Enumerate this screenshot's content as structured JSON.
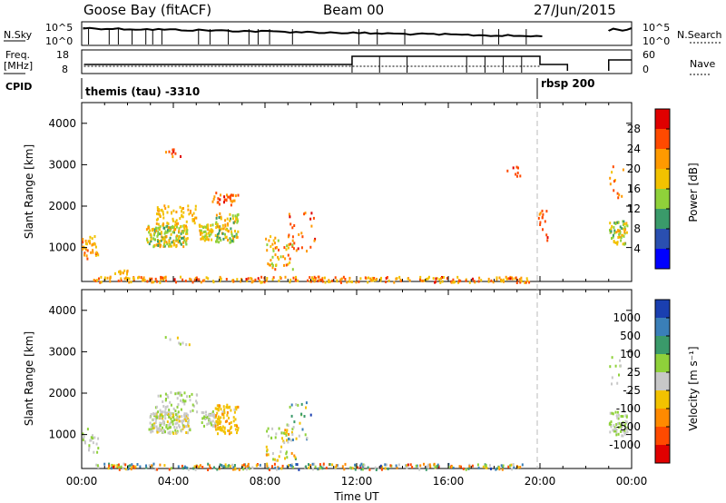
{
  "header": {
    "station": "Goose Bay (fitACF)",
    "beam": "Beam 00",
    "date": "27/Jun/2015"
  },
  "top_panels": {
    "nsky": {
      "label": "N.Sky",
      "ticks": [
        "10^5",
        "10^0"
      ]
    },
    "nsearch": {
      "label": "N.Search",
      "ticks": [
        "10^5",
        "10^0"
      ]
    },
    "freq": {
      "label": "Freq.",
      "unit": "[MHz]",
      "ticks": [
        "18",
        "8"
      ]
    },
    "nave": {
      "label": "Nave",
      "ticks": [
        "60",
        "0"
      ]
    },
    "cpid": {
      "label": "CPID",
      "programs": [
        "themis (tau) -3310",
        "rbsp 200"
      ]
    }
  },
  "colors": {
    "axis": "#000000",
    "gridline": "#bbbbbb"
  },
  "chart_data": [
    {
      "type": "heatmap",
      "panel": "power",
      "ylabel": "Slant Range [km]",
      "ylim": [
        180,
        4500
      ],
      "yticks": [
        1000,
        2000,
        3000,
        4000
      ],
      "xlim": [
        0,
        24
      ],
      "cbar": {
        "label": "Power [dB]",
        "ticks": [
          "28",
          "24",
          "20",
          "16",
          "12",
          "8",
          "4"
        ],
        "colors": [
          "#e00000",
          "#ff4a00",
          "#ff9a00",
          "#f2c200",
          "#8fd13a",
          "#3a9a6a",
          "#2a4fb0",
          "#0000ff"
        ]
      },
      "clusters": [
        {
          "t": 0.3,
          "r": 1000,
          "dt": 0.4,
          "dr": 300,
          "n": 40,
          "c": [
            0.2,
            0.5
          ]
        },
        {
          "t": 1.7,
          "r": 410,
          "dt": 0.3,
          "dr": 60,
          "n": 12,
          "c": [
            0.3,
            0.5
          ]
        },
        {
          "t": 3.7,
          "r": 1300,
          "dt": 0.9,
          "dr": 250,
          "n": 170,
          "c": [
            0.3,
            0.7
          ]
        },
        {
          "t": 4.1,
          "r": 1800,
          "dt": 0.9,
          "dr": 250,
          "n": 70,
          "c": [
            0.3,
            0.5
          ]
        },
        {
          "t": 5.4,
          "r": 1400,
          "dt": 0.3,
          "dr": 200,
          "n": 50,
          "c": [
            0.3,
            0.6
          ]
        },
        {
          "t": 6.3,
          "r": 1500,
          "dt": 0.5,
          "dr": 350,
          "n": 90,
          "c": [
            0.3,
            0.7
          ]
        },
        {
          "t": 6.2,
          "r": 2200,
          "dt": 0.6,
          "dr": 150,
          "n": 30,
          "c": [
            0.1,
            0.3
          ]
        },
        {
          "t": 8.6,
          "r": 900,
          "dt": 0.6,
          "dr": 400,
          "n": 50,
          "c": [
            0.2,
            0.6
          ]
        },
        {
          "t": 9.6,
          "r": 1400,
          "dt": 0.6,
          "dr": 500,
          "n": 25,
          "c": [
            0.1,
            0.3
          ]
        },
        {
          "t": 4.2,
          "r": 3300,
          "dt": 0.6,
          "dr": 100,
          "n": 10,
          "c": [
            0.1,
            0.3
          ]
        },
        {
          "t": 23.4,
          "r": 1400,
          "dt": 0.4,
          "dr": 300,
          "n": 60,
          "c": [
            0.3,
            0.7
          ]
        },
        {
          "t": 23.3,
          "r": 2600,
          "dt": 0.3,
          "dr": 400,
          "n": 12,
          "c": [
            0.1,
            0.4
          ]
        },
        {
          "t": 20.1,
          "r": 1600,
          "dt": 0.2,
          "dr": 400,
          "n": 15,
          "c": [
            0.1,
            0.3
          ]
        },
        {
          "t": 10,
          "r": 250,
          "dt": 9.5,
          "dr": 70,
          "n": 260,
          "c": [
            0.1,
            0.5
          ]
        },
        {
          "t": 18.8,
          "r": 2900,
          "dt": 0.3,
          "dr": 200,
          "n": 8,
          "c": [
            0.1,
            0.2
          ]
        }
      ]
    },
    {
      "type": "heatmap",
      "panel": "velocity",
      "ylabel": "Slant Range [km]",
      "ylim": [
        180,
        4500
      ],
      "yticks": [
        1000,
        2000,
        3000,
        4000
      ],
      "xlim": [
        0,
        24
      ],
      "xlabel": "Time UT",
      "xticks": [
        "00:00",
        "04:00",
        "08:00",
        "12:00",
        "16:00",
        "20:00",
        "00:00"
      ],
      "cbar": {
        "label": "Velocity [m s⁻¹]",
        "ticks": [
          "1000",
          "500",
          "100",
          "25",
          "-25",
          "-100",
          "-500",
          "-1000"
        ],
        "colors": [
          "#1a3fb0",
          "#3a7fb8",
          "#3a9a6a",
          "#8fd13a",
          "#c8c8c8",
          "#f2c200",
          "#ff8a00",
          "#ff4a00",
          "#e00000"
        ]
      },
      "clusters": [
        {
          "t": 0.3,
          "r": 900,
          "dt": 0.4,
          "dr": 300,
          "n": 30,
          "c": [
            0.4,
            0.5
          ]
        },
        {
          "t": 3.8,
          "r": 1300,
          "dt": 0.9,
          "dr": 250,
          "n": 170,
          "c": [
            0.4,
            0.6
          ]
        },
        {
          "t": 4.1,
          "r": 1800,
          "dt": 0.9,
          "dr": 250,
          "n": 60,
          "c": [
            0.4,
            0.5
          ]
        },
        {
          "t": 5.5,
          "r": 1400,
          "dt": 0.3,
          "dr": 200,
          "n": 40,
          "c": [
            0.4,
            0.5
          ]
        },
        {
          "t": 6.3,
          "r": 1400,
          "dt": 0.5,
          "dr": 350,
          "n": 90,
          "c": [
            0.55,
            0.7
          ]
        },
        {
          "t": 8.7,
          "r": 800,
          "dt": 0.7,
          "dr": 400,
          "n": 50,
          "c": [
            0.3,
            0.7
          ]
        },
        {
          "t": 9.5,
          "r": 1300,
          "dt": 0.6,
          "dr": 500,
          "n": 25,
          "c": [
            0.1,
            0.6
          ]
        },
        {
          "t": 23.4,
          "r": 1300,
          "dt": 0.4,
          "dr": 300,
          "n": 60,
          "c": [
            0.4,
            0.5
          ]
        },
        {
          "t": 23.3,
          "r": 2600,
          "dt": 0.3,
          "dr": 400,
          "n": 10,
          "c": [
            0.4,
            0.5
          ]
        },
        {
          "t": 10,
          "r": 250,
          "dt": 9.5,
          "dr": 70,
          "n": 260,
          "c": [
            0.1,
            0.9
          ]
        },
        {
          "t": 4.2,
          "r": 3300,
          "dt": 0.6,
          "dr": 100,
          "n": 8,
          "c": [
            0.4,
            0.6
          ]
        }
      ]
    }
  ]
}
